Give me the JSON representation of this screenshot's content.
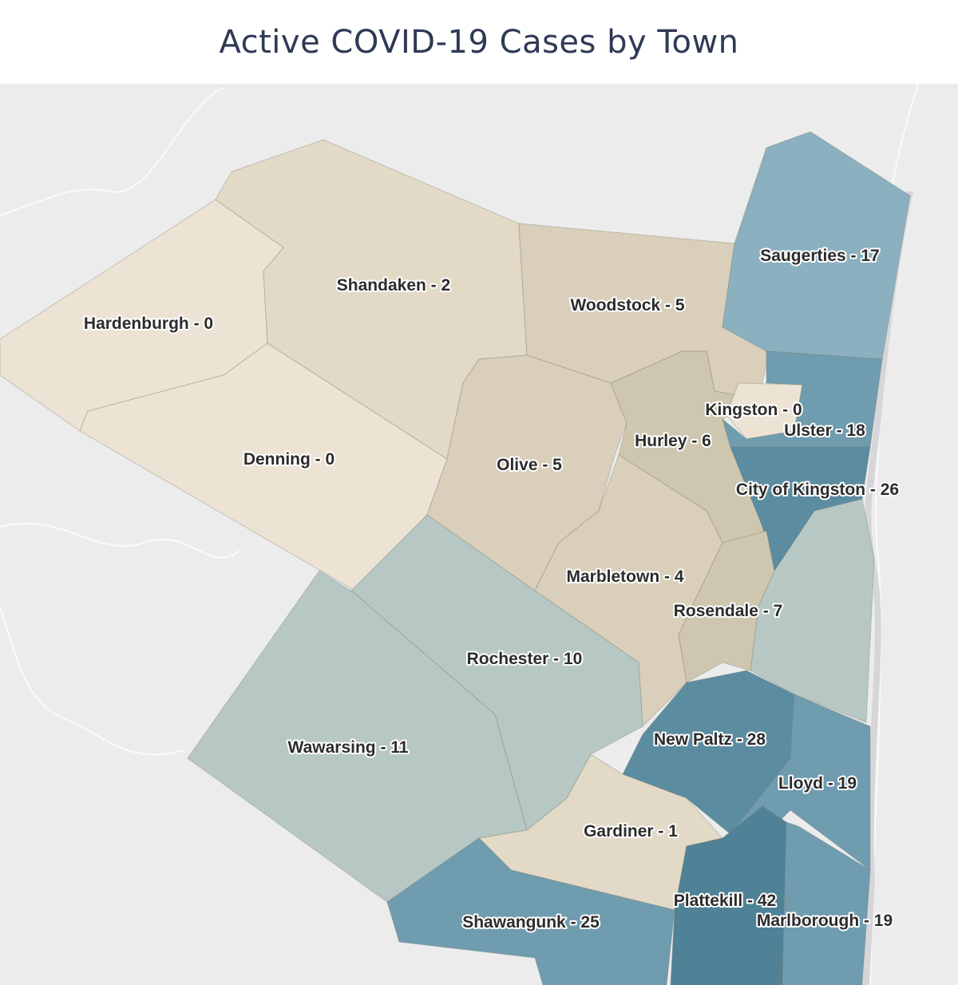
{
  "title": "Active COVID-19 Cases by Town",
  "legend_colors": {
    "zero": "#ede3d5",
    "low": "#e2d9c7",
    "mid_low": "#d9cfbb",
    "mid": "#cec6ae",
    "teal_light": "#b7c8c4",
    "blue_light": "#8bb0bf",
    "blue": "#6f9caf",
    "blue_dark": "#5b8ca0",
    "blue_darkest": "#4f8296"
  },
  "towns": [
    {
      "name": "Hardenburgh",
      "cases": 0,
      "label": "Hardenburgh - 0"
    },
    {
      "name": "Denning",
      "cases": 0,
      "label": "Denning - 0"
    },
    {
      "name": "Shandaken",
      "cases": 2,
      "label": "Shandaken - 2"
    },
    {
      "name": "Woodstock",
      "cases": 5,
      "label": "Woodstock - 5"
    },
    {
      "name": "Olive",
      "cases": 5,
      "label": "Olive - 5"
    },
    {
      "name": "Hurley",
      "cases": 6,
      "label": "Hurley - 6"
    },
    {
      "name": "Kingston",
      "cases": 0,
      "label": "Kingston - 0"
    },
    {
      "name": "Saugerties",
      "cases": 17,
      "label": "Saugerties - 17"
    },
    {
      "name": "Ulster",
      "cases": 18,
      "label": "Ulster - 18"
    },
    {
      "name": "City of Kingston",
      "cases": 26,
      "label": "City of Kingston - 26"
    },
    {
      "name": "Marbletown",
      "cases": 4,
      "label": "Marbletown - 4"
    },
    {
      "name": "Rosendale",
      "cases": 7,
      "label": "Rosendale - 7"
    },
    {
      "name": "Rochester",
      "cases": 10,
      "label": "Rochester - 10"
    },
    {
      "name": "Wawarsing",
      "cases": 11,
      "label": "Wawarsing - 11"
    },
    {
      "name": "New Paltz",
      "cases": 28,
      "label": "New Paltz - 28"
    },
    {
      "name": "Lloyd",
      "cases": 19,
      "label": "Lloyd - 19"
    },
    {
      "name": "Gardiner",
      "cases": 1,
      "label": "Gardiner - 1"
    },
    {
      "name": "Plattekill",
      "cases": 42,
      "label": "Plattekill - 42"
    },
    {
      "name": "Marlborough",
      "cases": 19,
      "label": "Marlborough - 19"
    },
    {
      "name": "Shawangunk",
      "cases": 25,
      "label": "Shawangunk - 25"
    }
  ]
}
